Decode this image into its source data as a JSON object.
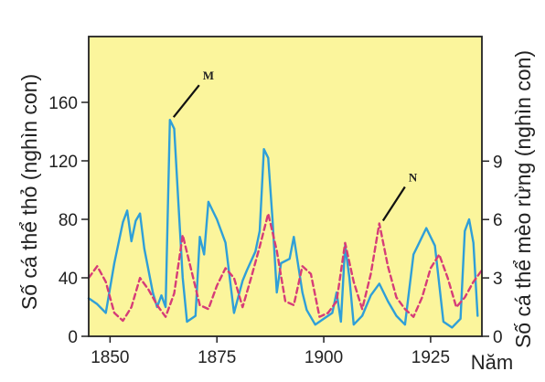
{
  "chart_data": {
    "type": "line",
    "xlabel": "Năm",
    "ylabel_left": "Số cá thể thỏ (nghìn con)",
    "ylabel_right": "Số cá thể mèo rừng (nghìn con)",
    "x_ticks": [
      1850,
      1875,
      1900,
      1925
    ],
    "y_left_ticks": [
      0,
      40,
      80,
      120,
      160
    ],
    "y_right_ticks": [
      0,
      3,
      6,
      9
    ],
    "xlim": [
      1845,
      1937
    ],
    "ylim_left": [
      0,
      205
    ],
    "ylim_right": [
      0,
      15.4
    ],
    "grid": false,
    "legend": "none",
    "plot_background": "#fbf59c",
    "series": [
      {
        "axis": "left",
        "color": "#2f9fd8",
        "style": "solid",
        "x": [
          1845,
          1847,
          1849,
          1851,
          1853,
          1854,
          1855,
          1856,
          1857,
          1858,
          1860,
          1861,
          1862,
          1863,
          1864,
          1865,
          1866,
          1867,
          1868,
          1870,
          1871,
          1872,
          1873,
          1874,
          1875,
          1877,
          1879,
          1881,
          1882,
          1884,
          1885,
          1886,
          1887,
          1888,
          1889,
          1890,
          1892,
          1893,
          1895,
          1896,
          1898,
          1900,
          1902,
          1903,
          1904,
          1905,
          1906,
          1907,
          1909,
          1911,
          1913,
          1915,
          1917,
          1919,
          1921,
          1922,
          1924,
          1926,
          1928,
          1930,
          1932,
          1933,
          1934,
          1935,
          1936
        ],
        "values": [
          26,
          22,
          16,
          50,
          78,
          86,
          65,
          79,
          84,
          60,
          30,
          20,
          28,
          20,
          148,
          142,
          90,
          40,
          10,
          14,
          68,
          56,
          92,
          86,
          80,
          64,
          16,
          38,
          45,
          58,
          72,
          128,
          122,
          80,
          30,
          50,
          53,
          68,
          30,
          18,
          8,
          12,
          16,
          30,
          10,
          62,
          40,
          8,
          14,
          28,
          36,
          24,
          14,
          8,
          56,
          62,
          74,
          62,
          10,
          6,
          12,
          72,
          80,
          64,
          14
        ]
      },
      {
        "axis": "right",
        "color": "#d63c78",
        "style": "dashed",
        "x": [
          1845,
          1847,
          1849,
          1851,
          1853,
          1855,
          1857,
          1859,
          1861,
          1863,
          1865,
          1867,
          1869,
          1871,
          1873,
          1875,
          1877,
          1879,
          1881,
          1883,
          1885,
          1887,
          1889,
          1891,
          1893,
          1895,
          1897,
          1899,
          1901,
          1903,
          1905,
          1907,
          1909,
          1911,
          1913,
          1915,
          1917,
          1919,
          1921,
          1923,
          1925,
          1927,
          1929,
          1931,
          1933,
          1935,
          1937
        ],
        "values": [
          3.0,
          3.6,
          2.8,
          1.2,
          0.8,
          1.5,
          3.0,
          2.4,
          1.6,
          1.0,
          2.2,
          5.2,
          3.4,
          1.6,
          1.4,
          2.6,
          3.5,
          3.0,
          1.5,
          3.0,
          4.6,
          6.3,
          4.4,
          1.8,
          1.6,
          3.6,
          3.2,
          1.0,
          1.2,
          1.8,
          4.8,
          2.8,
          1.4,
          3.2,
          5.8,
          3.6,
          2.0,
          1.4,
          1.0,
          2.0,
          3.5,
          4.2,
          3.0,
          1.5,
          2.0,
          2.8,
          3.4
        ]
      }
    ],
    "annotations": [
      {
        "text": "M",
        "x": 1864,
        "y": 148,
        "axis": "left"
      },
      {
        "text": "N",
        "x": 1913,
        "y": 5.8,
        "axis": "right"
      }
    ]
  }
}
